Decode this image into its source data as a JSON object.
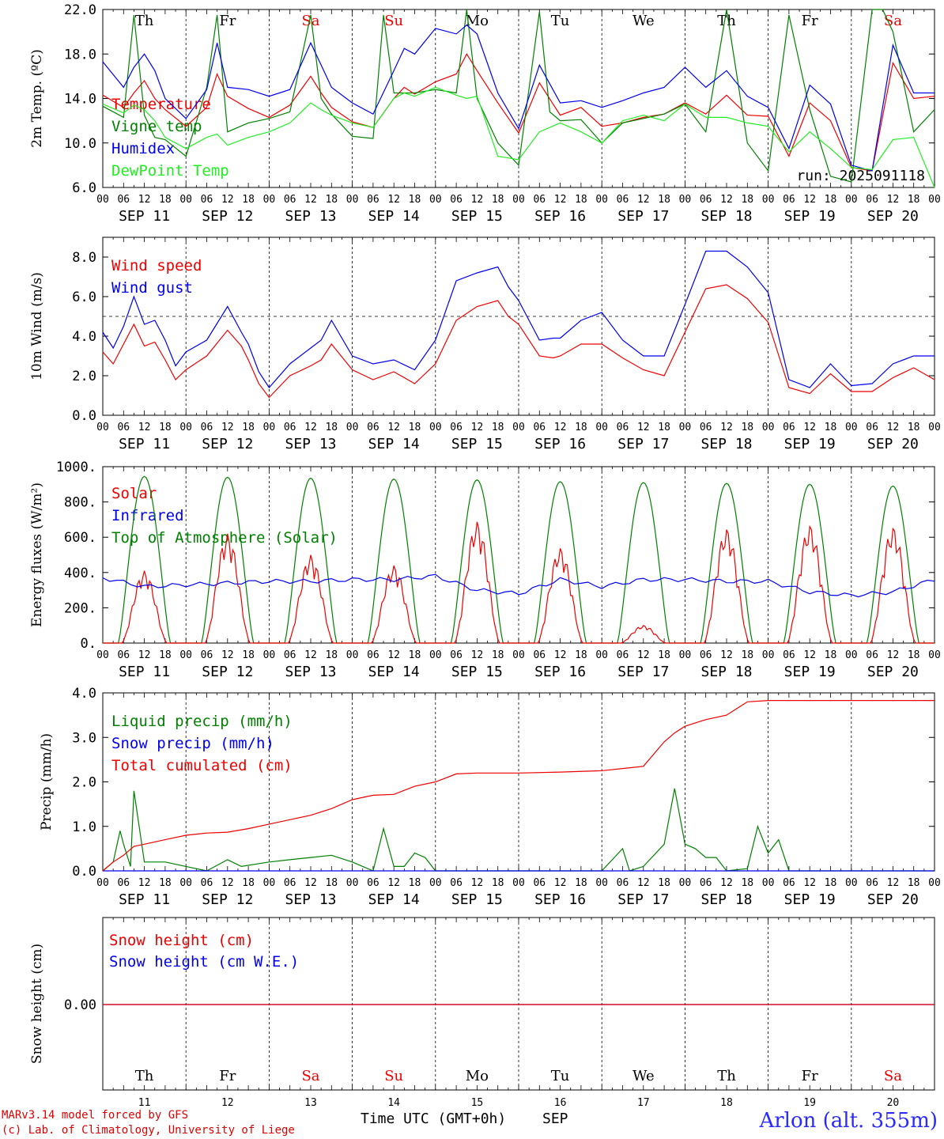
{
  "colors": {
    "red": "#ee0000",
    "green": "#008000",
    "blue": "#0000ee",
    "lightgreen": "#22ee22",
    "axis": "#000000"
  },
  "x_axis": {
    "hour_ticks": [
      "00",
      "06",
      "12",
      "18"
    ],
    "last_tick": "00",
    "dates": [
      "SEP 11",
      "SEP 12",
      "SEP 13",
      "SEP 14",
      "SEP 15",
      "SEP 16",
      "SEP 17",
      "SEP 18",
      "SEP 19",
      "SEP 20"
    ],
    "days": [
      {
        "name": "Th",
        "weekend": false
      },
      {
        "name": "Fr",
        "weekend": false
      },
      {
        "name": "Sa",
        "weekend": true
      },
      {
        "name": "Su",
        "weekend": true
      },
      {
        "name": "Mo",
        "weekend": false
      },
      {
        "name": "Tu",
        "weekend": false
      },
      {
        "name": "We",
        "weekend": false
      },
      {
        "name": "Th",
        "weekend": false
      },
      {
        "name": "Fr",
        "weekend": false
      },
      {
        "name": "Sa",
        "weekend": true
      }
    ],
    "day_numbers": [
      "11",
      "12",
      "13",
      "14",
      "15",
      "16",
      "17",
      "18",
      "19",
      "20"
    ],
    "title": "Time UTC (GMT+0h)",
    "month": "SEP"
  },
  "footer": {
    "credit_line1": "MARv3.14 model forced by GFS",
    "credit_line2": "(c) Lab. of Climatology, University of Liege",
    "station": "Arlon (alt. 355m)"
  },
  "chart_data": [
    {
      "type": "line",
      "ylabel": "2m Temp. (ºC)",
      "ylim": [
        6,
        22
      ],
      "yticks": [
        "6.0",
        "10.0",
        "14.0",
        "18.0",
        "22.0"
      ],
      "run_label": "run: 2025091118",
      "x_unit": "hours since SEP 11 00 UTC",
      "series": [
        {
          "name": "Temperature",
          "color": "red",
          "x": [
            0,
            6,
            9,
            12,
            15,
            18,
            24,
            30,
            33,
            36,
            42,
            48,
            54,
            60,
            63,
            66,
            72,
            78,
            84,
            87,
            90,
            96,
            102,
            105,
            108,
            114,
            120,
            126,
            132,
            138,
            144,
            150,
            156,
            162,
            168,
            174,
            180,
            186,
            192,
            198,
            204,
            210,
            216,
            222,
            228,
            234,
            240
          ],
          "y": [
            14.3,
            13.2,
            14.5,
            15.6,
            14.0,
            13.0,
            11.5,
            13.2,
            16.2,
            14.2,
            13.1,
            12.3,
            13.4,
            16.0,
            14.5,
            13.2,
            11.9,
            11.4,
            14.0,
            15.0,
            14.4,
            15.5,
            16.2,
            18.0,
            16.5,
            13.6,
            10.9,
            15.4,
            12.5,
            13.2,
            11.5,
            11.8,
            12.3,
            12.6,
            13.6,
            12.6,
            14.3,
            12.5,
            12.4,
            8.8,
            13.6,
            12.0,
            7.8,
            7.5,
            17.2,
            14.0,
            14.2
          ]
        },
        {
          "name": "Vigne temp",
          "color": "green",
          "x": [
            0,
            6,
            9,
            12,
            15,
            18,
            24,
            30,
            33,
            36,
            42,
            48,
            54,
            60,
            63,
            66,
            72,
            78,
            81,
            84,
            90,
            96,
            102,
            105,
            108,
            114,
            120,
            126,
            129,
            132,
            138,
            144,
            150,
            156,
            162,
            168,
            174,
            180,
            186,
            192,
            198,
            204,
            210,
            216,
            222,
            225,
            228,
            234,
            240
          ],
          "y": [
            13.3,
            12.3,
            21.5,
            12.5,
            10.5,
            10.3,
            8.8,
            15.0,
            21.5,
            11.0,
            11.8,
            12.2,
            12.8,
            21.5,
            14.0,
            12.6,
            10.6,
            10.4,
            21.5,
            14.5,
            14.5,
            14.8,
            14.5,
            22.0,
            14.0,
            10.0,
            8.0,
            21.8,
            12.8,
            12.0,
            12.1,
            10.0,
            11.8,
            12.2,
            12.6,
            13.5,
            11.0,
            22.0,
            10.0,
            7.5,
            21.5,
            13.0,
            7.0,
            6.5,
            22.0,
            22.0,
            20.0,
            11.0,
            13.0
          ]
        },
        {
          "name": "Humidex",
          "color": "blue",
          "x": [
            0,
            6,
            9,
            12,
            15,
            18,
            24,
            30,
            33,
            36,
            42,
            48,
            54,
            60,
            63,
            66,
            72,
            78,
            84,
            87,
            90,
            96,
            102,
            105,
            108,
            114,
            120,
            126,
            132,
            138,
            144,
            150,
            156,
            162,
            168,
            174,
            180,
            186,
            192,
            198,
            204,
            210,
            216,
            222,
            228,
            234,
            240
          ],
          "y": [
            17.3,
            15.0,
            16.8,
            18.0,
            16.5,
            14.0,
            12.2,
            14.8,
            19.0,
            15.0,
            14.8,
            14.2,
            14.8,
            19.0,
            17.0,
            15.0,
            13.6,
            12.6,
            16.5,
            18.5,
            18.0,
            20.3,
            19.8,
            20.6,
            19.8,
            14.5,
            11.3,
            17.0,
            13.6,
            13.8,
            13.2,
            13.8,
            14.5,
            15.0,
            16.8,
            15.0,
            16.5,
            14.2,
            13.2,
            9.5,
            15.2,
            13.5,
            8.0,
            7.5,
            18.8,
            14.5,
            14.5
          ]
        },
        {
          "name": "DewPoint Temp",
          "color": "lightgreen",
          "x": [
            0,
            6,
            9,
            12,
            15,
            18,
            24,
            30,
            33,
            36,
            42,
            48,
            54,
            60,
            63,
            66,
            72,
            78,
            84,
            87,
            90,
            96,
            102,
            105,
            108,
            114,
            120,
            126,
            132,
            138,
            144,
            150,
            156,
            162,
            168,
            174,
            180,
            186,
            192,
            198,
            204,
            210,
            216,
            222,
            228,
            234,
            240
          ],
          "y": [
            13.5,
            12.7,
            13.4,
            13.0,
            12.0,
            10.5,
            9.5,
            10.5,
            10.8,
            9.8,
            10.5,
            11.0,
            11.8,
            13.6,
            13.0,
            12.5,
            11.8,
            11.4,
            14.0,
            14.5,
            14.2,
            15.0,
            14.3,
            14.0,
            14.2,
            8.8,
            8.5,
            11.0,
            11.8,
            11.0,
            10.0,
            12.0,
            12.5,
            12.0,
            13.5,
            12.3,
            12.3,
            11.8,
            11.5,
            9.2,
            11.0,
            9.5,
            7.8,
            7.6,
            10.3,
            10.5,
            6.0
          ]
        }
      ]
    },
    {
      "type": "line",
      "ylabel": "10m Wind (m/s)",
      "ylim": [
        0,
        9
      ],
      "yticks": [
        "0.0",
        "2.0",
        "4.0",
        "6.0",
        "8.0"
      ],
      "reference_line": 5,
      "x_unit": "hours since SEP 11 00 UTC",
      "series": [
        {
          "name": "Wind speed",
          "color": "red",
          "x": [
            0,
            3,
            6,
            9,
            12,
            15,
            18,
            21,
            24,
            30,
            36,
            40,
            42,
            45,
            48,
            54,
            60,
            63,
            66,
            72,
            78,
            84,
            90,
            96,
            102,
            108,
            114,
            117,
            120,
            126,
            130,
            132,
            138,
            144,
            150,
            156,
            162,
            168,
            174,
            180,
            186,
            192,
            198,
            204,
            210,
            216,
            222,
            228,
            234,
            240
          ],
          "y": [
            3.2,
            2.6,
            3.6,
            4.6,
            3.5,
            3.7,
            2.8,
            1.8,
            2.3,
            3.0,
            4.3,
            3.5,
            2.8,
            1.6,
            0.9,
            2.0,
            2.5,
            2.8,
            3.6,
            2.3,
            1.8,
            2.2,
            1.6,
            2.6,
            4.8,
            5.5,
            5.8,
            5.0,
            4.6,
            3.0,
            2.9,
            3.0,
            3.6,
            3.6,
            2.9,
            2.3,
            2.0,
            4.2,
            6.4,
            6.6,
            5.9,
            4.7,
            1.4,
            1.1,
            2.1,
            1.2,
            1.2,
            1.9,
            2.4,
            1.8
          ]
        },
        {
          "name": "Wind gust",
          "color": "blue",
          "x": [
            0,
            3,
            6,
            9,
            12,
            15,
            18,
            21,
            24,
            30,
            36,
            40,
            42,
            45,
            48,
            54,
            60,
            63,
            66,
            72,
            78,
            84,
            90,
            96,
            102,
            108,
            114,
            117,
            120,
            126,
            130,
            132,
            138,
            144,
            150,
            156,
            162,
            168,
            174,
            180,
            186,
            192,
            198,
            204,
            210,
            216,
            222,
            228,
            234,
            240
          ],
          "y": [
            4.2,
            3.4,
            4.5,
            6.0,
            4.6,
            4.8,
            3.8,
            2.5,
            3.2,
            3.8,
            5.5,
            4.2,
            3.6,
            2.2,
            1.4,
            2.6,
            3.4,
            3.8,
            4.8,
            3.0,
            2.6,
            2.8,
            2.3,
            3.8,
            6.8,
            7.2,
            7.5,
            6.5,
            5.8,
            3.8,
            3.9,
            3.9,
            4.8,
            5.2,
            3.8,
            3.0,
            3.0,
            5.6,
            8.3,
            8.3,
            7.5,
            6.2,
            1.8,
            1.4,
            2.6,
            1.5,
            1.6,
            2.6,
            3.0,
            3.0
          ]
        }
      ]
    },
    {
      "type": "line",
      "ylabel": "Energy fluxes (W/m²)",
      "ylim": [
        0,
        1000
      ],
      "yticks": [
        "0.",
        "200.",
        "400.",
        "600.",
        "800.",
        "1000."
      ],
      "x_unit": "hours since SEP 11 00 UTC",
      "series": [
        {
          "name": "Solar",
          "color": "red",
          "peaks": [
            410,
            620,
            500,
            440,
            690,
            540,
            100,
            650,
            670,
            660
          ]
        },
        {
          "name": "Infrared",
          "color": "blue",
          "x": [
            0,
            12,
            24,
            36,
            48,
            60,
            72,
            84,
            96,
            108,
            120,
            132,
            144,
            156,
            168,
            180,
            192,
            204,
            216,
            228,
            240
          ],
          "y": [
            370,
            320,
            330,
            340,
            350,
            350,
            360,
            360,
            380,
            300,
            280,
            360,
            320,
            360,
            360,
            350,
            350,
            290,
            270,
            290,
            360
          ]
        },
        {
          "name": "Top of Atmosphere (Solar)",
          "color": "green",
          "peaks": [
            945,
            940,
            935,
            930,
            925,
            915,
            910,
            905,
            900,
            890
          ]
        }
      ]
    },
    {
      "type": "line",
      "ylabel": "Precip (mm/h)",
      "ylim": [
        0,
        4
      ],
      "yticks": [
        "0.0",
        "1.0",
        "2.0",
        "3.0",
        "4.0"
      ],
      "x_unit": "hours since SEP 11 00 UTC",
      "series": [
        {
          "name": "Liquid precip (mm/h)",
          "color": "green",
          "x": [
            0,
            3,
            5,
            6,
            8,
            9,
            12,
            18,
            24,
            30,
            36,
            40,
            48,
            54,
            60,
            66,
            72,
            78,
            81,
            84,
            87,
            90,
            93,
            96,
            99,
            102,
            108,
            120,
            132,
            144,
            150,
            152,
            156,
            162,
            165,
            168,
            171,
            174,
            177,
            180,
            186,
            189,
            192,
            195,
            198,
            204,
            210,
            216,
            222,
            228,
            234,
            240
          ],
          "y": [
            0,
            0.2,
            0.9,
            0.6,
            0.1,
            1.8,
            0.2,
            0.2,
            0.1,
            0.0,
            0.25,
            0.1,
            0.2,
            0.25,
            0.3,
            0.35,
            0.2,
            0.0,
            0.95,
            0.1,
            0.1,
            0.4,
            0.3,
            0.0,
            0.0,
            0.0,
            0.0,
            0.0,
            0.0,
            0.0,
            0.5,
            0.0,
            0.1,
            0.6,
            1.85,
            0.6,
            0.5,
            0.3,
            0.3,
            0.0,
            0.05,
            1.0,
            0.4,
            0.7,
            0.0,
            0,
            0,
            0,
            0,
            0,
            0,
            0
          ]
        },
        {
          "name": "Snow precip (mm/h)",
          "color": "blue",
          "x": [
            0,
            240
          ],
          "y": [
            0,
            0
          ]
        },
        {
          "name": "Total cumulated (cm)",
          "color": "red",
          "x": [
            0,
            3,
            6,
            9,
            12,
            18,
            24,
            30,
            36,
            42,
            48,
            54,
            60,
            66,
            72,
            78,
            84,
            90,
            96,
            102,
            108,
            114,
            120,
            132,
            144,
            150,
            156,
            162,
            165,
            168,
            174,
            180,
            186,
            192,
            198,
            204,
            216,
            228,
            240
          ],
          "y": [
            0,
            0.2,
            0.35,
            0.55,
            0.6,
            0.7,
            0.8,
            0.85,
            0.87,
            0.95,
            1.05,
            1.15,
            1.25,
            1.4,
            1.6,
            1.7,
            1.72,
            1.9,
            2.0,
            2.18,
            2.2,
            2.2,
            2.2,
            2.22,
            2.25,
            2.3,
            2.35,
            2.9,
            3.1,
            3.25,
            3.4,
            3.5,
            3.8,
            3.83,
            3.83,
            3.83,
            3.83,
            3.83,
            3.83
          ]
        }
      ]
    },
    {
      "type": "line",
      "ylabel": "Snow height (cm)",
      "yticks": [
        "0.00"
      ],
      "x_unit": "hours since SEP 11 00 UTC",
      "series": [
        {
          "name": "Snow height (cm)",
          "color": "red",
          "x": [
            0,
            240
          ],
          "y": [
            0,
            0
          ]
        },
        {
          "name": "Snow height (cm W.E.)",
          "color": "blue",
          "x": [
            0,
            240
          ],
          "y": [
            0,
            0
          ]
        }
      ]
    }
  ]
}
